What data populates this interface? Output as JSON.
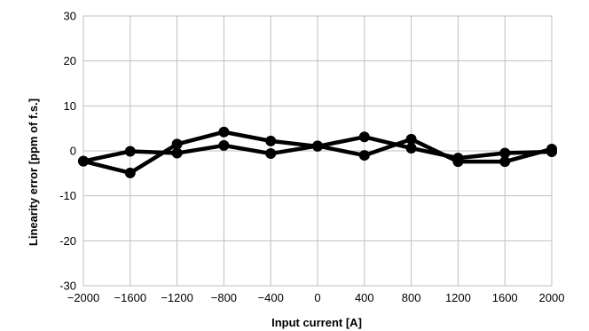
{
  "chart_data": {
    "type": "line",
    "title": "",
    "xlabel": "Input current [A]",
    "ylabel": "Linearity error [ppm of f.s.]",
    "x": [
      -2000,
      -1600,
      -1200,
      -800,
      -400,
      0,
      400,
      800,
      1200,
      1600,
      2000
    ],
    "x_tick_labels": [
      "−2000",
      "−1600",
      "−1200",
      "−800",
      "−400",
      "0",
      "400",
      "800",
      "1200",
      "1600",
      "2000"
    ],
    "y_tick_labels": [
      "30",
      "20",
      "10",
      "0",
      "-10",
      "-20",
      "-30"
    ],
    "y_ticks": [
      30,
      20,
      10,
      0,
      -10,
      -20,
      -30
    ],
    "xlim": [
      -2000,
      2000
    ],
    "ylim": [
      -30,
      30
    ],
    "grid": true,
    "legend": "none",
    "series": [
      {
        "values": [
          -2.3,
          -4.9,
          1.5,
          4.2,
          2.2,
          1.0,
          3.1,
          0.6,
          -1.6,
          -0.5,
          -0.2
        ]
      },
      {
        "values": [
          -2.3,
          -0.1,
          -0.5,
          1.2,
          -0.6,
          1.1,
          -1.0,
          2.6,
          -2.4,
          -2.4,
          0.4
        ]
      }
    ],
    "color": "#000000"
  }
}
